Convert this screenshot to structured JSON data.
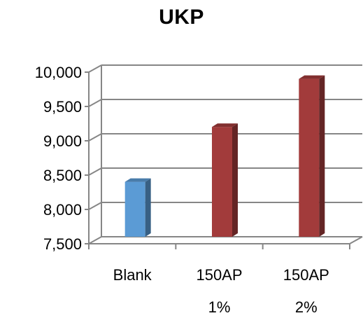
{
  "chart_data": {
    "type": "bar",
    "title": "UKP",
    "categories": [
      [
        "Blank"
      ],
      [
        "150AP",
        "1%"
      ],
      [
        "150AP",
        "2%"
      ]
    ],
    "values": [
      8300,
      9100,
      9800
    ],
    "bar_colors": [
      "#5b9bd5",
      "#a23b3b",
      "#a23b3b"
    ],
    "ylim": [
      7500,
      10000
    ],
    "yticks": [
      "7,500",
      "8,000",
      "8,500",
      "9,000",
      "9,500",
      "10,000"
    ],
    "ytick_values": [
      7500,
      8000,
      8500,
      9000,
      9500,
      10000
    ],
    "grid": true,
    "legend": "none",
    "style": "3d-column"
  }
}
